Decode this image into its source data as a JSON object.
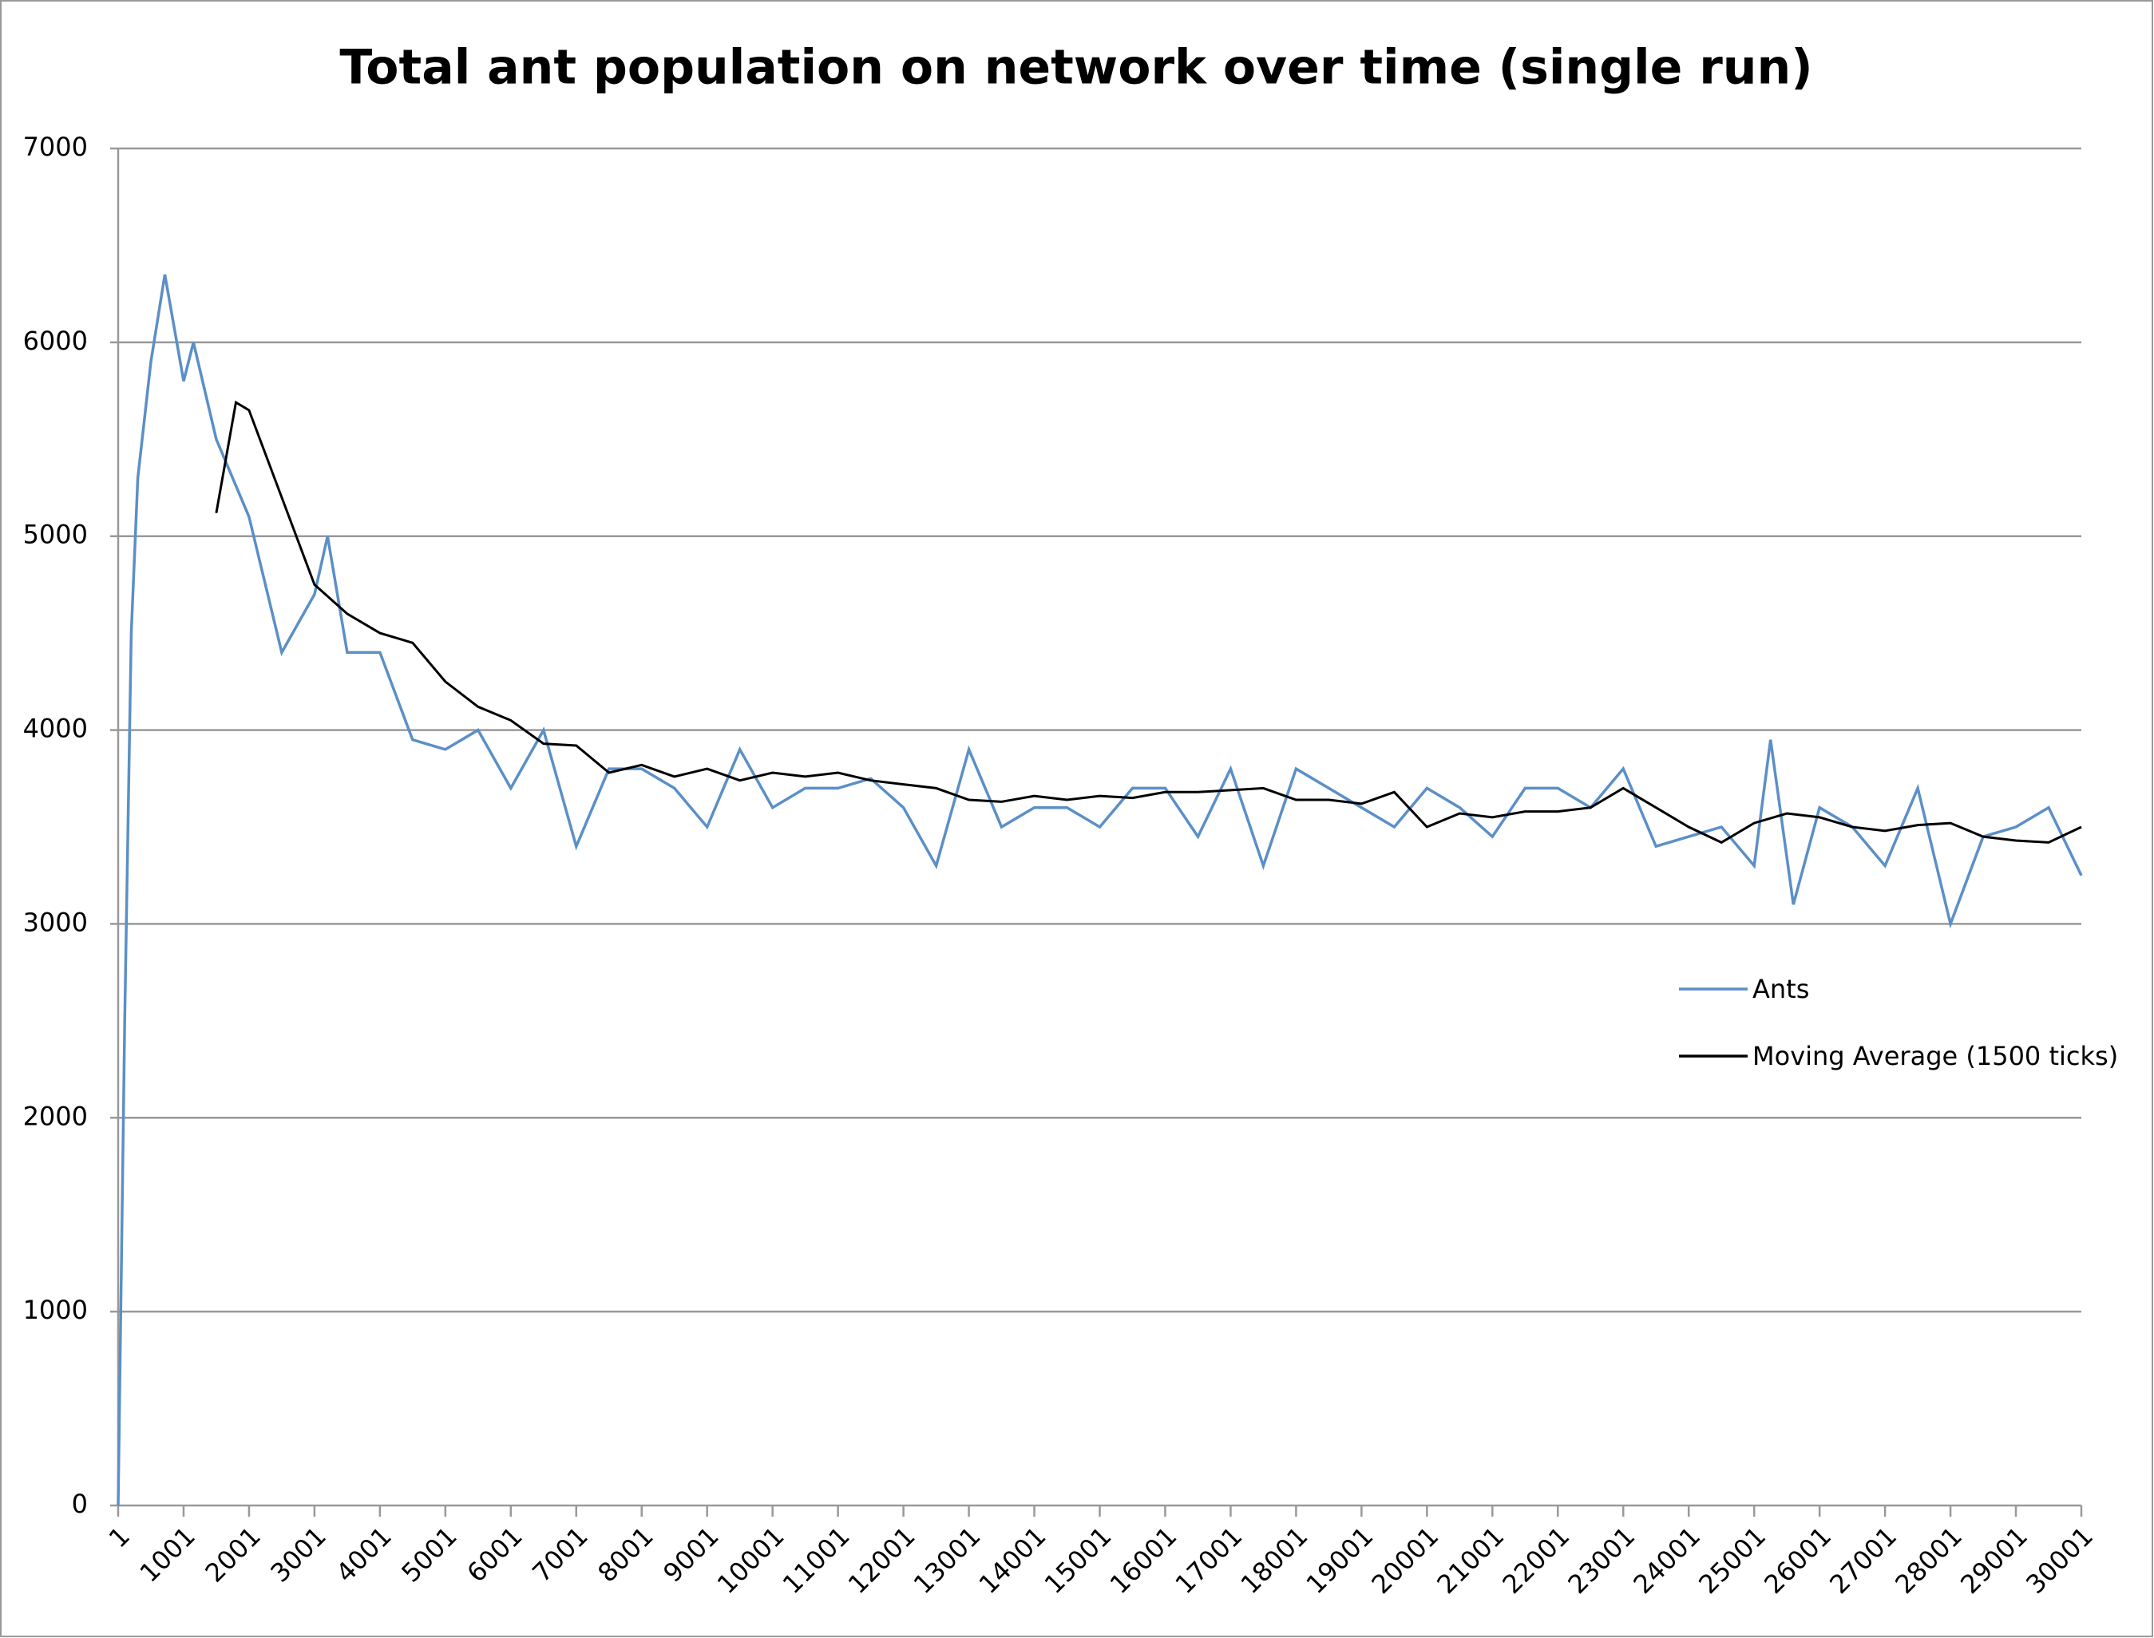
{
  "chart_data": {
    "type": "line",
    "title": "Total ant population on network over time (single run)",
    "xlim": [
      1,
      30001
    ],
    "xticks": [
      1,
      1001,
      2001,
      3001,
      4001,
      5001,
      6001,
      7001,
      8001,
      9001,
      10001,
      11001,
      12001,
      13001,
      14001,
      15001,
      16001,
      17001,
      18001,
      19001,
      20001,
      21001,
      22001,
      23001,
      24001,
      25001,
      26001,
      27001,
      28001,
      29001,
      30001
    ],
    "ylim": [
      0,
      7000
    ],
    "yticks": [
      0,
      1000,
      2000,
      3000,
      4000,
      5000,
      6000,
      7000
    ],
    "grid": true,
    "legend": "right",
    "series": [
      {
        "name": "Ants",
        "color": "#5b8fc7",
        "x": [
          1,
          101,
          201,
          301,
          501,
          715,
          1001,
          1151,
          1501,
          2001,
          2501,
          3001,
          3201,
          3501,
          4001,
          4501,
          5001,
          5501,
          6001,
          6501,
          7001,
          7501,
          8001,
          8501,
          9001,
          9501,
          10001,
          10501,
          11001,
          11501,
          12001,
          12501,
          13001,
          13501,
          14001,
          14501,
          15001,
          15501,
          16001,
          16501,
          17001,
          17501,
          18001,
          18501,
          19001,
          19501,
          20001,
          20501,
          21001,
          21501,
          22001,
          22501,
          23001,
          23501,
          24001,
          24501,
          25001,
          25251,
          25601,
          26001,
          26501,
          27001,
          27501,
          28001,
          28501,
          29001,
          29501,
          30001
        ],
        "values": [
          0,
          2500,
          4500,
          5300,
          5900,
          6350,
          5800,
          6000,
          5500,
          5100,
          4400,
          4700,
          5000,
          4400,
          4400,
          3950,
          3900,
          4000,
          3700,
          4000,
          3400,
          3800,
          3800,
          3700,
          3500,
          3900,
          3600,
          3700,
          3700,
          3750,
          3600,
          3300,
          3900,
          3500,
          3600,
          3600,
          3500,
          3700,
          3700,
          3450,
          3800,
          3300,
          3800,
          3700,
          3600,
          3500,
          3700,
          3600,
          3450,
          3700,
          3700,
          3600,
          3800,
          3400,
          3450,
          3500,
          3300,
          3950,
          3100,
          3600,
          3500,
          3300,
          3700,
          3000,
          3450,
          3500,
          3600,
          3250
        ]
      },
      {
        "name": "Moving Average (1500 ticks)",
        "color": "#000000",
        "x": [
          1501,
          1801,
          2001,
          2501,
          3001,
          3501,
          4001,
          4501,
          5001,
          5501,
          6001,
          6501,
          7001,
          7501,
          8001,
          8501,
          9001,
          9501,
          10001,
          10501,
          11001,
          11501,
          12001,
          12501,
          13001,
          13501,
          14001,
          14501,
          15001,
          15501,
          16001,
          16501,
          17001,
          17501,
          18001,
          18501,
          19001,
          19501,
          20001,
          20501,
          21001,
          21501,
          22001,
          22501,
          23001,
          23501,
          24001,
          24501,
          25001,
          25501,
          26001,
          26501,
          27001,
          27501,
          28001,
          28501,
          29001,
          29501,
          30001
        ],
        "values": [
          5120,
          5690,
          5650,
          5200,
          4750,
          4600,
          4500,
          4450,
          4250,
          4120,
          4050,
          3930,
          3920,
          3780,
          3820,
          3760,
          3800,
          3740,
          3780,
          3760,
          3780,
          3740,
          3720,
          3700,
          3640,
          3630,
          3660,
          3640,
          3660,
          3650,
          3680,
          3680,
          3690,
          3700,
          3640,
          3640,
          3620,
          3680,
          3500,
          3570,
          3550,
          3580,
          3580,
          3600,
          3700,
          3600,
          3500,
          3420,
          3520,
          3570,
          3550,
          3500,
          3480,
          3510,
          3520,
          3450,
          3430,
          3420,
          3500
        ]
      }
    ]
  }
}
